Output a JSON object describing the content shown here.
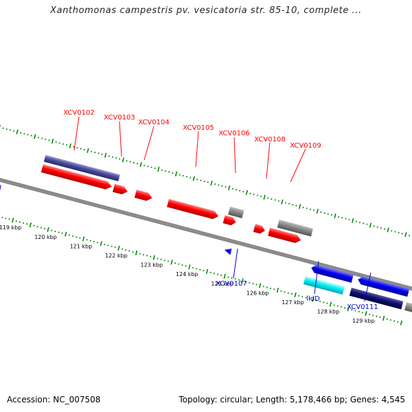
{
  "title": "Xanthomonas campestris pv. vesicatoria str. 85-10, complete ...",
  "accession_label": "Accession: NC_007508",
  "topology_label": "Topology: circular; Length: 5,178,466 bp; Genes: 4,545",
  "colors": {
    "forward_label": "#ff0000",
    "reverse_label": "#0000cc",
    "backbone": "#8c8c8c",
    "ticks": "#008800"
  },
  "scale": {
    "ticks": [
      {
        "label": "119 kbp",
        "kb": 119
      },
      {
        "label": "120 kbp",
        "kb": 120
      },
      {
        "label": "121 kbp",
        "kb": 121
      },
      {
        "label": "122 kbp",
        "kb": 122
      },
      {
        "label": "123 kbp",
        "kb": 123
      },
      {
        "label": "124 kbp",
        "kb": 124
      },
      {
        "label": "125 kbp",
        "kb": 125
      },
      {
        "label": "126 kbp",
        "kb": 126
      },
      {
        "label": "127 kbp",
        "kb": 127
      },
      {
        "label": "128 kbp",
        "kb": 128
      },
      {
        "label": "129 kbp",
        "kb": 129
      }
    ]
  },
  "gene_labels_forward": [
    "XCV0102",
    "XCV0103",
    "XCV0104",
    "XCV0105",
    "XCV0106",
    "XCV0108",
    "XCV0109"
  ],
  "gene_labels_reverse": [
    "XCV0107",
    "lldD",
    "XCV0111"
  ]
}
